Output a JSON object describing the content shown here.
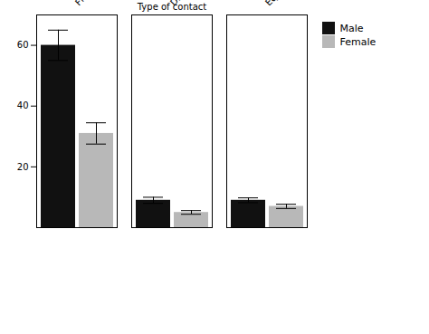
{
  "chart_data": {
    "type": "bar",
    "categories": [
      "Flappings",
      "Diver contacts",
      "Equipment contacts"
    ],
    "series": [
      {
        "name": "Male",
        "color": "#111111",
        "values": [
          60,
          9,
          9
        ],
        "errors": [
          5,
          1.0,
          0.8
        ]
      },
      {
        "name": "Female",
        "color": "#b8b8b8",
        "values": [
          31,
          5,
          7
        ],
        "errors": [
          3.5,
          0.6,
          0.7
        ]
      }
    ],
    "xlabel": "Type of contact",
    "ylim": [
      0,
      70
    ],
    "yticks": [
      20,
      40,
      60
    ],
    "legend": "right"
  }
}
